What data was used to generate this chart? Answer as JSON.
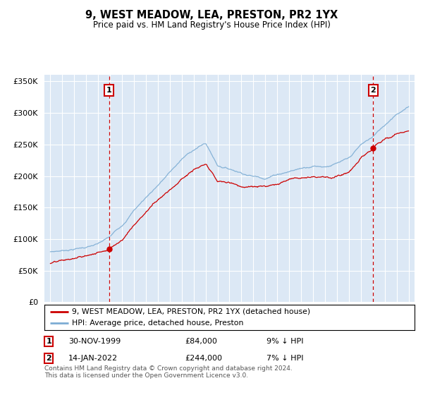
{
  "title": "9, WEST MEADOW, LEA, PRESTON, PR2 1YX",
  "subtitle": "Price paid vs. HM Land Registry's House Price Index (HPI)",
  "legend_label1": "9, WEST MEADOW, LEA, PRESTON, PR2 1YX (detached house)",
  "legend_label2": "HPI: Average price, detached house, Preston",
  "sale1_date": "30-NOV-1999",
  "sale1_price": "£84,000",
  "sale1_hpi": "9% ↓ HPI",
  "sale2_date": "14-JAN-2022",
  "sale2_price": "£244,000",
  "sale2_hpi": "7% ↓ HPI",
  "footnote": "Contains HM Land Registry data © Crown copyright and database right 2024.\nThis data is licensed under the Open Government Licence v3.0.",
  "sale1_year": 1999.92,
  "sale2_year": 2022.04,
  "sale1_value": 84000,
  "sale2_value": 244000,
  "hpi_color": "#7dadd4",
  "price_color": "#cc0000",
  "plot_bg": "#dce8f5",
  "grid_color": "#ffffff",
  "sale_line_color": "#cc0000",
  "ylim_min": 0,
  "ylim_max": 360000,
  "xmin": 1994.5,
  "xmax": 2025.5,
  "yticks": [
    0,
    50000,
    100000,
    150000,
    200000,
    250000,
    300000,
    350000
  ]
}
